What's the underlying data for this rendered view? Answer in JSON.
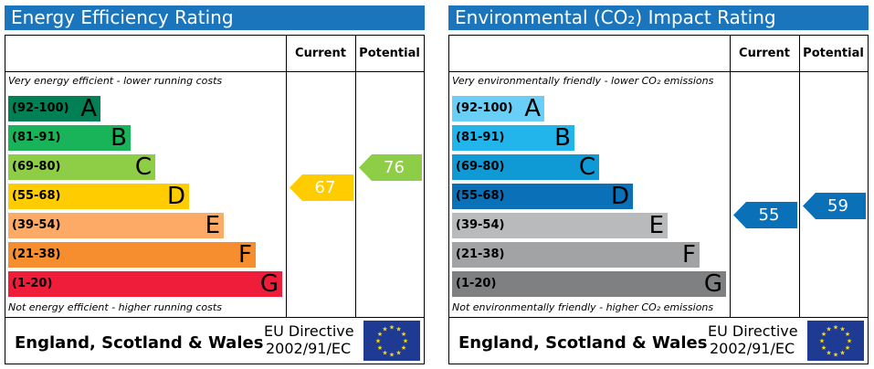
{
  "chart_data": [
    {
      "type": "bar",
      "title": "Energy Efficiency Rating",
      "column_headers": [
        "Current",
        "Potential"
      ],
      "top_caption": "Very energy efficient - lower running costs",
      "bottom_caption": "Not energy efficient - higher running costs",
      "categories": [
        "A",
        "B",
        "C",
        "D",
        "E",
        "F",
        "G"
      ],
      "ranges": [
        "(92-100)",
        "(81-91)",
        "(69-80)",
        "(55-68)",
        "(39-54)",
        "(21-38)",
        "(1-20)"
      ],
      "band_colors": [
        "#008054",
        "#19b459",
        "#8dce46",
        "#ffcc00",
        "#fcaa65",
        "#f68d2e",
        "#ef1c3a"
      ],
      "current": {
        "value": 67,
        "band": "D",
        "color": "#ffcc00"
      },
      "potential": {
        "value": 76,
        "band": "C",
        "color": "#8dce46"
      },
      "footer_country": "England, Scotland & Wales",
      "footer_directive_1": "EU Directive",
      "footer_directive_2": "2002/91/EC",
      "title_color": "#1a75bc"
    },
    {
      "type": "bar",
      "title": "Environmental (CO₂) Impact Rating",
      "column_headers": [
        "Current",
        "Potential"
      ],
      "top_caption": "Very environmentally friendly - lower CO₂ emissions",
      "bottom_caption": "Not environmentally friendly - higher CO₂ emissions",
      "categories": [
        "A",
        "B",
        "C",
        "D",
        "E",
        "F",
        "G"
      ],
      "ranges": [
        "(92-100)",
        "(81-91)",
        "(69-80)",
        "(55-68)",
        "(39-54)",
        "(21-38)",
        "(1-20)"
      ],
      "band_colors": [
        "#6acff6",
        "#22b5eb",
        "#0f9ad6",
        "#0a70b8",
        "#b9babc",
        "#a2a3a5",
        "#7f8082"
      ],
      "current": {
        "value": 55,
        "band": "D",
        "color": "#0a70b8"
      },
      "potential": {
        "value": 59,
        "band": "D",
        "color": "#0a70b8"
      },
      "footer_country": "England, Scotland & Wales",
      "footer_directive_1": "EU Directive",
      "footer_directive_2": "2002/91/EC",
      "title_color": "#1a75bc"
    }
  ]
}
